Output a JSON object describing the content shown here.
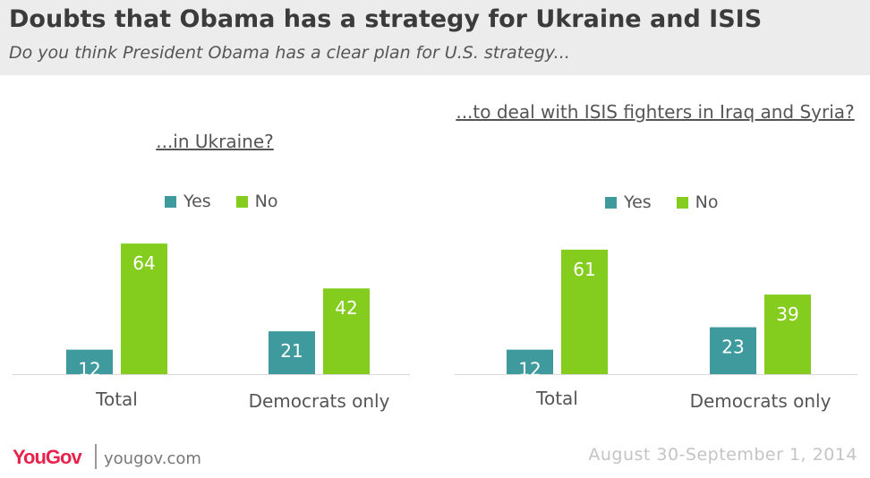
{
  "title": "Doubts that Obama has a strategy for Ukraine and ISIS",
  "subtitle": "Do you think President Obama has a clear plan for U.S. strategy...",
  "colors": {
    "yes": "#3e9a9c",
    "no": "#84cc1e",
    "header_bg": "#ececec",
    "brand": "#e8224b"
  },
  "legend": {
    "yes_label": "Yes",
    "no_label": "No"
  },
  "footer": {
    "brand": "YouGov",
    "url": "yougov.com",
    "date": "August 30-September 1, 2014"
  },
  "chart_data": [
    {
      "type": "bar",
      "title": "...in Ukraine?",
      "categories": [
        "Total",
        "Democrats only"
      ],
      "series": [
        {
          "name": "Yes",
          "values": [
            12,
            21
          ]
        },
        {
          "name": "No",
          "values": [
            64,
            42
          ]
        }
      ],
      "legend_position": "top",
      "data_labels": true,
      "grid": false
    },
    {
      "type": "bar",
      "title": "...to deal with ISIS fighters in Iraq and Syria?",
      "categories": [
        "Total",
        "Democrats only"
      ],
      "series": [
        {
          "name": "Yes",
          "values": [
            12,
            23
          ]
        },
        {
          "name": "No",
          "values": [
            61,
            39
          ]
        }
      ],
      "legend_position": "top",
      "data_labels": true,
      "grid": false
    }
  ]
}
